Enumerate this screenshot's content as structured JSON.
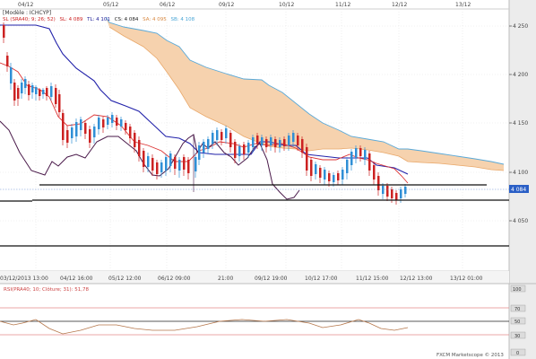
{
  "header": {
    "model": "[Modèle : ICHCYP]",
    "legend": [
      {
        "text": "SL (SRA40; 9; 26; 52)",
        "color": "#cc2222"
      },
      {
        "text": "SL: 4 089",
        "color": "#cc2222"
      },
      {
        "text": "TL: 4 101",
        "color": "#222299"
      },
      {
        "text": "CS: 4 084",
        "color": "#222222"
      },
      {
        "text": "SA: 4 095",
        "color": "#e3a060"
      },
      {
        "text": "SB: 4 108",
        "color": "#4aa6d6"
      }
    ]
  },
  "top_axis_dates": [
    "04/12",
    "05/12",
    "06/12",
    "09/12",
    "10/12",
    "11/12",
    "12/12",
    "13/12"
  ],
  "bottom_axis_times": [
    "03/12/2013 13:00",
    "04/12 16:00",
    "05/12 12:00",
    "06/12 09:00",
    "21:00",
    "09/12 19:00",
    "10/12 17:00",
    "11/12 15:00",
    "12/12 13:00",
    "13/12 01:00"
  ],
  "price_axis": [
    "4 250",
    "4 200",
    "4 150",
    "4 100",
    "4 050"
  ],
  "current_price": "4 084",
  "rsi": {
    "label": "RSI(PRA40; 10; Clôture; 31): 51,78",
    "axis": [
      "100",
      "70",
      "30",
      "0"
    ],
    "hidden_axis": "50"
  },
  "copyright": "FXCM Marketscope © 2013",
  "colors": {
    "kumo": "#f6d2ae",
    "senkou_b": "#5aa9d8",
    "kijun": "#2222aa",
    "tenkan": "#dd3333",
    "chikou": "#4a1a4a",
    "bull": "#2f8fd6",
    "bear": "#cc2222",
    "level": "#111111"
  }
}
